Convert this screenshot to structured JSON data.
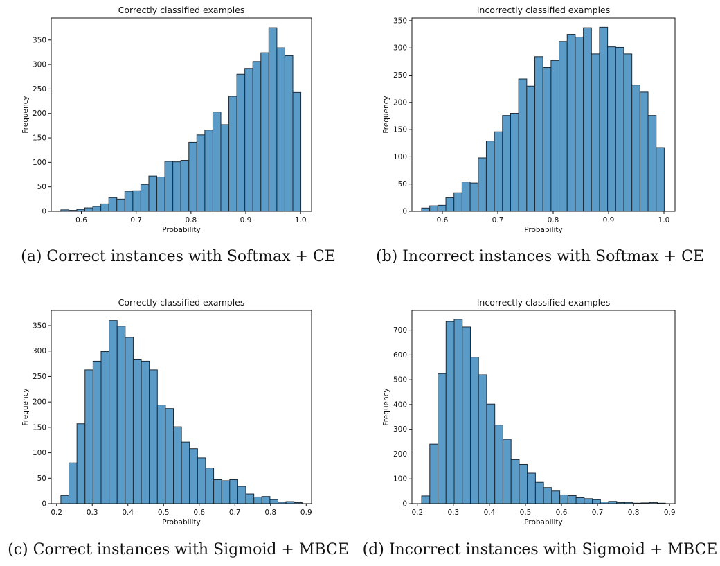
{
  "style": {
    "bar_fill": "#5b9bc8",
    "bar_edge": "#1c2a36"
  },
  "chart_data": [
    {
      "type": "bar",
      "title": "Correctly classified examples",
      "xlabel": "Probability",
      "ylabel": "Frequency",
      "xlim": [
        0.545,
        1.02
      ],
      "ylim": [
        0,
        395
      ],
      "xticks": [
        0.6,
        0.7,
        0.8,
        0.9,
        1.0
      ],
      "xtick_labels": [
        "0.6",
        "0.7",
        "0.8",
        "0.9",
        "1.0"
      ],
      "yticks": [
        0,
        50,
        100,
        150,
        200,
        250,
        300,
        350
      ],
      "bin_start": 0.5625,
      "bin_width": 0.0146,
      "values": [
        3,
        2,
        4,
        7,
        10,
        15,
        28,
        25,
        41,
        42,
        55,
        72,
        70,
        102,
        101,
        104,
        141,
        156,
        166,
        203,
        177,
        235,
        280,
        292,
        306,
        324,
        375,
        334,
        318,
        243
      ],
      "caption": "(a) Correct instances with Softmax + CE"
    },
    {
      "type": "bar",
      "title": "Incorrectly classified examples",
      "xlabel": "Probability",
      "ylabel": "Frequency",
      "xlim": [
        0.545,
        1.02
      ],
      "ylim": [
        0,
        355
      ],
      "xticks": [
        0.6,
        0.7,
        0.8,
        0.9,
        1.0
      ],
      "xtick_labels": [
        "0.6",
        "0.7",
        "0.8",
        "0.9",
        "1.0"
      ],
      "yticks": [
        0,
        50,
        100,
        150,
        200,
        250,
        300,
        350
      ],
      "bin_start": 0.5625,
      "bin_width": 0.0146,
      "values": [
        6,
        10,
        11,
        25,
        34,
        54,
        52,
        98,
        129,
        146,
        176,
        180,
        243,
        230,
        284,
        264,
        277,
        312,
        325,
        320,
        337,
        289,
        338,
        302,
        301,
        289,
        232,
        219,
        176,
        117
      ],
      "caption": "(b) Incorrect instances with Softmax + CE"
    },
    {
      "type": "bar",
      "title": "Correctly classified examples",
      "xlabel": "Probability",
      "ylabel": "Frequency",
      "xlim": [
        0.185,
        0.915
      ],
      "ylim": [
        0,
        380
      ],
      "xticks": [
        0.2,
        0.3,
        0.4,
        0.5,
        0.6,
        0.7,
        0.8,
        0.9
      ],
      "xtick_labels": [
        "0.2",
        "0.3",
        "0.4",
        "0.5",
        "0.6",
        "0.7",
        "0.8",
        "0.9"
      ],
      "yticks": [
        0,
        50,
        100,
        150,
        200,
        250,
        300,
        350
      ],
      "bin_start": 0.212,
      "bin_width": 0.02255,
      "values": [
        16,
        80,
        157,
        263,
        280,
        299,
        360,
        349,
        327,
        284,
        280,
        263,
        194,
        187,
        151,
        121,
        108,
        90,
        70,
        47,
        45,
        47,
        34,
        19,
        13,
        14,
        8,
        3,
        4,
        2
      ],
      "caption": "(c) Correct instances with Sigmoid + MBCE"
    },
    {
      "type": "bar",
      "title": "Incorrectly classified examples",
      "xlabel": "Probability",
      "ylabel": "Frequency",
      "xlim": [
        0.185,
        0.915
      ],
      "ylim": [
        0,
        780
      ],
      "xticks": [
        0.2,
        0.3,
        0.4,
        0.5,
        0.6,
        0.7,
        0.8,
        0.9
      ],
      "xtick_labels": [
        "0.2",
        "0.3",
        "0.4",
        "0.5",
        "0.6",
        "0.7",
        "0.8",
        "0.9"
      ],
      "yticks": [
        0,
        100,
        200,
        300,
        400,
        500,
        600,
        700
      ],
      "bin_start": 0.212,
      "bin_width": 0.02255,
      "values": [
        31,
        240,
        525,
        735,
        744,
        713,
        591,
        520,
        402,
        317,
        260,
        178,
        158,
        123,
        86,
        65,
        51,
        35,
        32,
        24,
        20,
        16,
        7,
        9,
        4,
        5,
        2,
        3,
        4,
        2
      ],
      "caption": "(d) Incorrect instances with Sigmoid + MBCE"
    }
  ]
}
